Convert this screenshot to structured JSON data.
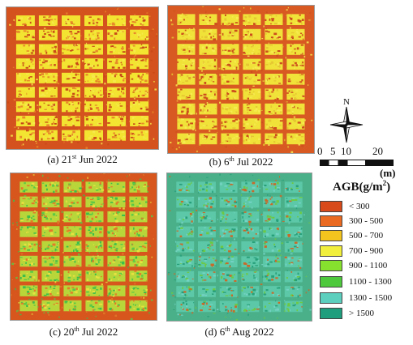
{
  "panels": [
    {
      "caption_prefix": "(a) 21",
      "caption_sup": "st",
      "caption_suffix": " Jun 2022",
      "background_color": "#d4521e",
      "plot_color": "#f2e430",
      "speckle_colors": [
        "#c84a18",
        "#e88a2a",
        "#f6e84a"
      ]
    },
    {
      "caption_prefix": "(b) 6",
      "caption_sup": "th",
      "caption_suffix": " Jul 2022",
      "background_color": "#d85a22",
      "plot_color": "#f0e238",
      "speckle_colors": [
        "#cc4e1c",
        "#f6ea50",
        "#e6c632"
      ]
    },
    {
      "caption_prefix": "(c) 20",
      "caption_sup": "th",
      "caption_suffix": " Jul 2022",
      "background_color": "#d6561e",
      "plot_color": "#b8d63a",
      "speckle_colors": [
        "#5cc845",
        "#e6e040",
        "#3dbd4a",
        "#e27a28"
      ]
    },
    {
      "caption_prefix": "(d) 6",
      "caption_sup": "th",
      "caption_suffix": " Aug 2022",
      "background_color": "#4ab08a",
      "plot_color": "#5cc8a8",
      "speckle_colors": [
        "#2aa07a",
        "#74d2c2",
        "#6cc845",
        "#c86a2a"
      ]
    }
  ],
  "north_arrow": {
    "label": "N"
  },
  "scale_bar": {
    "tick_labels": [
      "0",
      "5",
      "10",
      "20"
    ],
    "unit": "(m)"
  },
  "legend": {
    "title_prefix": "AGB(g/m",
    "title_sup": "2",
    "title_suffix": ")",
    "classes": [
      {
        "label": "< 300",
        "color": "#d84a1a"
      },
      {
        "label": "300 - 500",
        "color": "#ea6a22"
      },
      {
        "label": "500 - 700",
        "color": "#f3c41e"
      },
      {
        "label": "700 - 900",
        "color": "#f2ee3c"
      },
      {
        "label": "900 - 1100",
        "color": "#86e02e"
      },
      {
        "label": "1100 - 1300",
        "color": "#4ec83c"
      },
      {
        "label": "1300 - 1500",
        "color": "#5ccfbf"
      },
      {
        "label": "> 1500",
        "color": "#1e9e7c"
      }
    ]
  }
}
